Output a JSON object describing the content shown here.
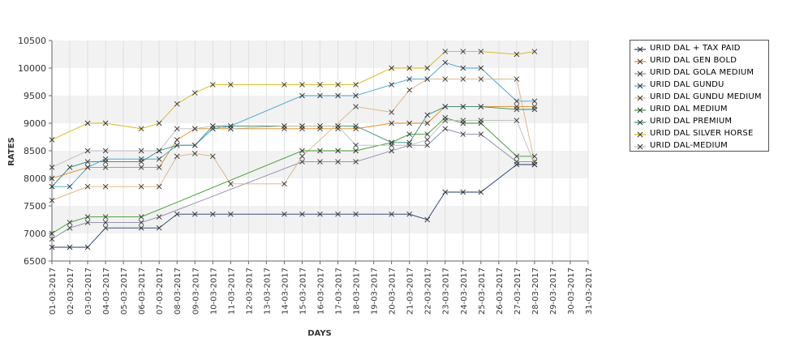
{
  "chart_data": {
    "type": "line",
    "xlabel": "DAYS",
    "ylabel": "RATES",
    "ylim": [
      6500,
      10500
    ],
    "yticks": [
      6500,
      7000,
      7500,
      8000,
      8500,
      9000,
      9500,
      10000,
      10500
    ],
    "categories": [
      "01-03-2017",
      "02-03-2017",
      "03-03-2017",
      "04-03-2017",
      "05-03-2017",
      "06-03-2017",
      "07-03-2017",
      "08-03-2017",
      "09-03-2017",
      "10-03-2017",
      "11-03-2017",
      "12-03-2017",
      "13-03-2017",
      "14-03-2017",
      "15-03-2017",
      "16-03-2017",
      "17-03-2017",
      "18-03-2017",
      "19-03-2017",
      "20-03-2017",
      "21-03-2017",
      "22-03-2017",
      "23-03-2017",
      "24-03-2017",
      "25-03-2017",
      "26-03-2017",
      "27-03-2017",
      "28-03-2017",
      "29-03-2017",
      "30-03-2017",
      "31-03-2017"
    ],
    "grid": "alternating horizontal bands",
    "legend_position": "right",
    "series": [
      {
        "name": "URID DAL + TAX PAID",
        "color": "#1f3a6e",
        "x": [
          "01-03-2017",
          "02-03-2017",
          "03-03-2017",
          "04-03-2017",
          "06-03-2017",
          "07-03-2017",
          "08-03-2017",
          "09-03-2017",
          "10-03-2017",
          "11-03-2017",
          "14-03-2017",
          "15-03-2017",
          "16-03-2017",
          "17-03-2017",
          "18-03-2017",
          "20-03-2017",
          "21-03-2017",
          "22-03-2017",
          "23-03-2017",
          "24-03-2017",
          "25-03-2017",
          "27-03-2017",
          "28-03-2017"
        ],
        "values": [
          6750,
          6750,
          6750,
          7100,
          7100,
          7100,
          7350,
          7350,
          7350,
          7350,
          7350,
          7350,
          7350,
          7350,
          7350,
          7350,
          7350,
          7250,
          7750,
          7750,
          7750,
          8250,
          8250
        ]
      },
      {
        "name": "URID DAL GEN BOLD",
        "color": "#e8860f",
        "x": [
          "01-03-2017",
          "03-03-2017",
          "04-03-2017",
          "06-03-2017",
          "07-03-2017",
          "08-03-2017",
          "09-03-2017",
          "10-03-2017",
          "11-03-2017",
          "14-03-2017",
          "15-03-2017",
          "16-03-2017",
          "17-03-2017",
          "18-03-2017",
          "20-03-2017",
          "21-03-2017",
          "22-03-2017",
          "23-03-2017",
          "24-03-2017",
          "25-03-2017",
          "27-03-2017",
          "28-03-2017"
        ],
        "values": [
          8000,
          8200,
          8200,
          8200,
          8200,
          8700,
          8900,
          8900,
          8900,
          8900,
          8900,
          8900,
          8900,
          8900,
          9000,
          9000,
          9000,
          9300,
          9300,
          9300,
          9300,
          9300
        ]
      },
      {
        "name": "URID DAL GOLA MEDIUM",
        "color": "#8888aa",
        "x": [
          "01-03-2017",
          "02-03-2017",
          "03-03-2017",
          "04-03-2017",
          "06-03-2017",
          "07-03-2017",
          "15-03-2017",
          "16-03-2017",
          "17-03-2017",
          "18-03-2017",
          "20-03-2017",
          "21-03-2017",
          "22-03-2017",
          "23-03-2017",
          "24-03-2017",
          "25-03-2017",
          "27-03-2017",
          "28-03-2017"
        ],
        "values": [
          6900,
          7100,
          7200,
          7200,
          7200,
          7300,
          8300,
          8300,
          8300,
          8300,
          8500,
          8600,
          8600,
          8900,
          8800,
          8800,
          8300,
          8300
        ]
      },
      {
        "name": "URID DAL GUNDU",
        "color": "#3ba3d0",
        "x": [
          "01-03-2017",
          "02-03-2017",
          "03-03-2017",
          "04-03-2017",
          "06-03-2017",
          "07-03-2017",
          "08-03-2017",
          "09-03-2017",
          "10-03-2017",
          "11-03-2017",
          "15-03-2017",
          "16-03-2017",
          "17-03-2017",
          "18-03-2017",
          "20-03-2017",
          "21-03-2017",
          "22-03-2017",
          "23-03-2017",
          "24-03-2017",
          "25-03-2017",
          "27-03-2017",
          "28-03-2017"
        ],
        "values": [
          7850,
          7850,
          8200,
          8350,
          8350,
          8350,
          8600,
          8600,
          8900,
          8950,
          9500,
          9500,
          9500,
          9500,
          9700,
          9800,
          9800,
          10100,
          10000,
          10000,
          9400,
          9400
        ]
      },
      {
        "name": "URID DAL GUNDU MEDIUM",
        "color": "#d9b27a",
        "x": [
          "01-03-2017",
          "03-03-2017",
          "04-03-2017",
          "06-03-2017",
          "07-03-2017",
          "08-03-2017",
          "09-03-2017",
          "10-03-2017",
          "11-03-2017",
          "14-03-2017",
          "15-03-2017",
          "18-03-2017",
          "20-03-2017",
          "21-03-2017",
          "22-03-2017",
          "23-03-2017",
          "24-03-2017",
          "25-03-2017",
          "27-03-2017",
          "28-03-2017"
        ],
        "values": [
          7600,
          7850,
          7850,
          7850,
          7850,
          8400,
          8450,
          8400,
          7900,
          7900,
          8400,
          9300,
          9200,
          9600,
          9800,
          9800,
          9800,
          9800,
          9800,
          8300
        ]
      },
      {
        "name": "URID DAL MEDIUM",
        "color": "#3a9a2a",
        "x": [
          "01-03-2017",
          "02-03-2017",
          "03-03-2017",
          "04-03-2017",
          "06-03-2017",
          "15-03-2017",
          "16-03-2017",
          "17-03-2017",
          "18-03-2017",
          "20-03-2017",
          "21-03-2017",
          "22-03-2017",
          "23-03-2017",
          "24-03-2017",
          "25-03-2017",
          "27-03-2017",
          "28-03-2017"
        ],
        "values": [
          7000,
          7200,
          7300,
          7300,
          7300,
          8500,
          8500,
          8500,
          8500,
          8650,
          8800,
          8800,
          9100,
          9000,
          9000,
          8400,
          8400
        ]
      },
      {
        "name": "URID DAL PREMIUM",
        "color": "#2a8a7a",
        "x": [
          "01-03-2017",
          "02-03-2017",
          "03-03-2017",
          "04-03-2017",
          "06-03-2017",
          "07-03-2017",
          "08-03-2017",
          "09-03-2017",
          "10-03-2017",
          "11-03-2017",
          "14-03-2017",
          "15-03-2017",
          "16-03-2017",
          "17-03-2017",
          "18-03-2017",
          "20-03-2017",
          "21-03-2017",
          "22-03-2017",
          "23-03-2017",
          "24-03-2017",
          "25-03-2017",
          "27-03-2017",
          "28-03-2017"
        ],
        "values": [
          7850,
          8200,
          8300,
          8300,
          8300,
          8500,
          8600,
          8600,
          8950,
          8950,
          8950,
          8950,
          8950,
          8950,
          8950,
          8650,
          8650,
          9150,
          9300,
          9300,
          9300,
          9250,
          9250
        ]
      },
      {
        "name": "URID DAL SILVER HORSE",
        "color": "#d6b800",
        "x": [
          "01-03-2017",
          "03-03-2017",
          "04-03-2017",
          "06-03-2017",
          "07-03-2017",
          "08-03-2017",
          "09-03-2017",
          "10-03-2017",
          "11-03-2017",
          "14-03-2017",
          "15-03-2017",
          "16-03-2017",
          "17-03-2017",
          "18-03-2017",
          "20-03-2017",
          "21-03-2017",
          "22-03-2017",
          "23-03-2017",
          "24-03-2017",
          "25-03-2017",
          "27-03-2017",
          "28-03-2017"
        ],
        "values": [
          8700,
          9000,
          9000,
          8900,
          9000,
          9350,
          9550,
          9700,
          9700,
          9700,
          9700,
          9700,
          9700,
          9700,
          10000,
          10000,
          10000,
          10300,
          10300,
          10300,
          10250,
          10300
        ]
      },
      {
        "name": "URID DAL-MEDIUM",
        "color": "#bbbbbb",
        "x": [
          "01-03-2017",
          "03-03-2017",
          "04-03-2017",
          "06-03-2017",
          "07-03-2017",
          "08-03-2017",
          "09-03-2017",
          "10-03-2017",
          "11-03-2017",
          "14-03-2017",
          "15-03-2017",
          "16-03-2017",
          "17-03-2017",
          "18-03-2017",
          "20-03-2017",
          "21-03-2017",
          "22-03-2017",
          "23-03-2017",
          "24-03-2017",
          "25-03-2017",
          "27-03-2017",
          "28-03-2017"
        ],
        "values": [
          8200,
          8500,
          8500,
          8500,
          8500,
          8900,
          8900,
          8950,
          8900,
          8950,
          8950,
          8950,
          8950,
          8600,
          8600,
          8600,
          8700,
          9050,
          9050,
          9050,
          9050,
          8250
        ]
      }
    ]
  }
}
